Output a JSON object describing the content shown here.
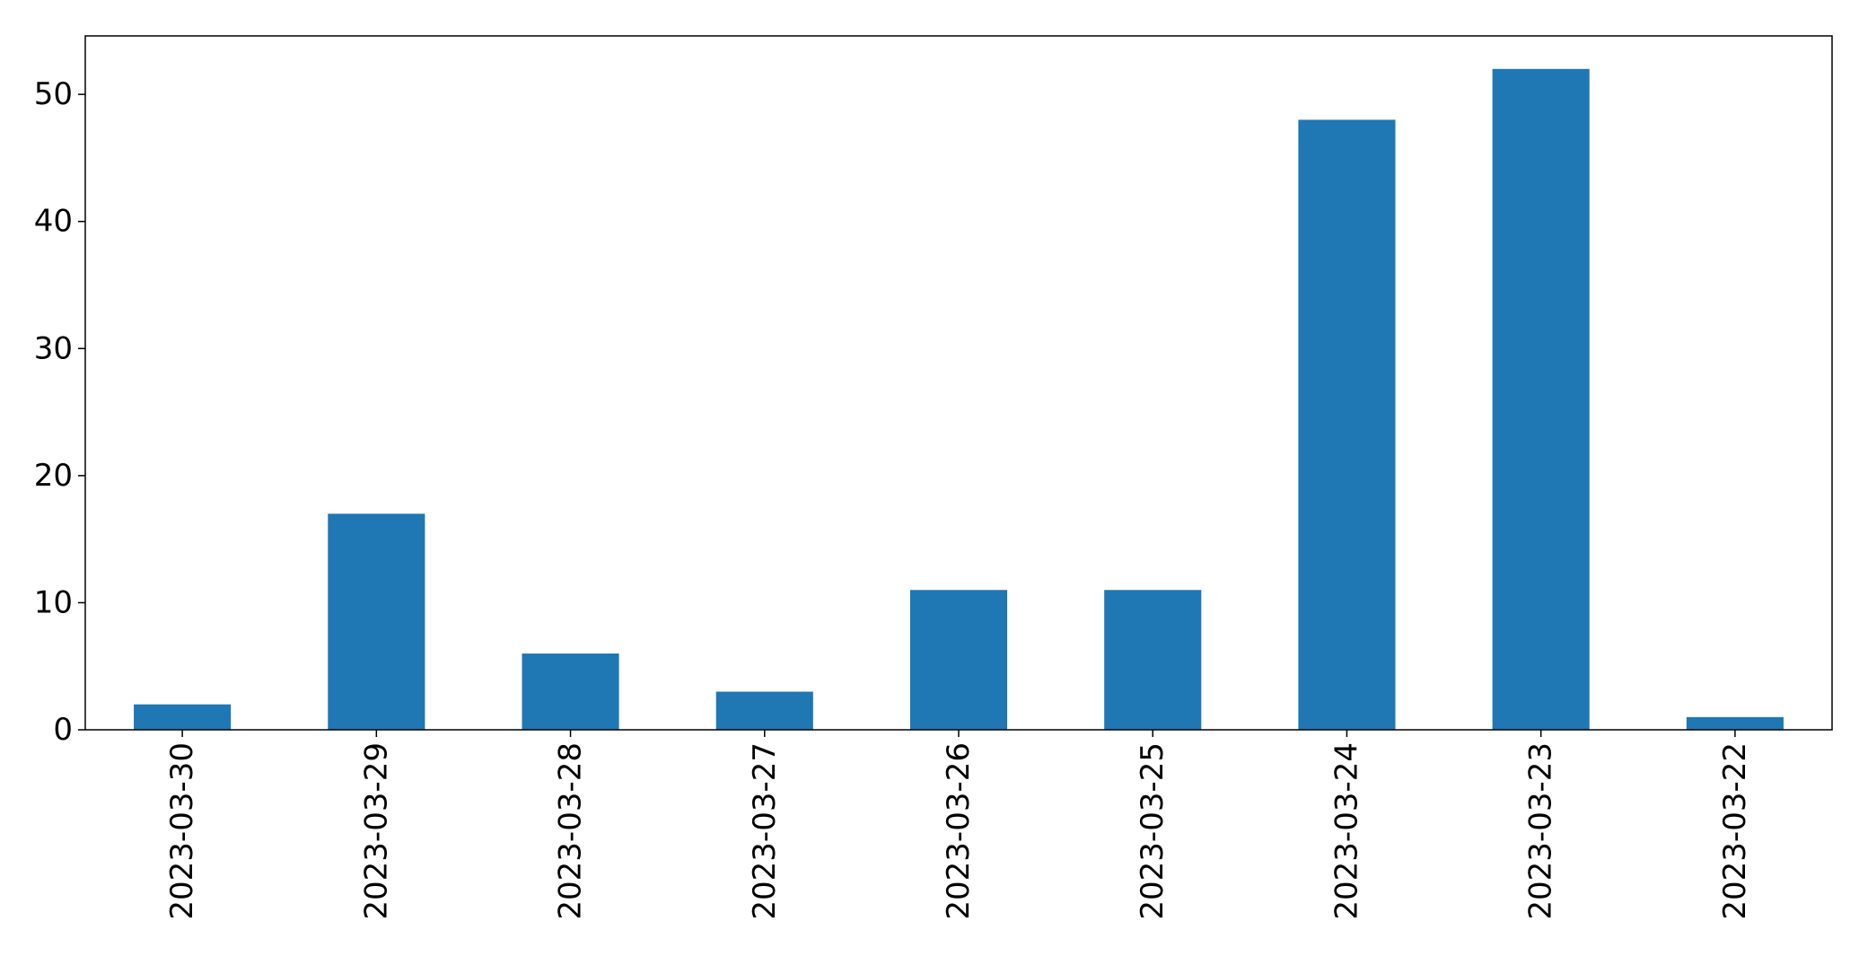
{
  "chart_data": {
    "type": "bar",
    "categories": [
      "2023-03-30",
      "2023-03-29",
      "2023-03-28",
      "2023-03-27",
      "2023-03-26",
      "2023-03-25",
      "2023-03-24",
      "2023-03-23",
      "2023-03-22"
    ],
    "values": [
      2,
      17,
      6,
      3,
      11,
      11,
      48,
      52,
      1
    ],
    "title": "",
    "xlabel": "",
    "ylabel": "",
    "ylim": [
      0,
      54.6
    ],
    "yticks": [
      0,
      10,
      20,
      30,
      40,
      50
    ],
    "grid": false,
    "legend": "none",
    "bar_color": "#1f77b4"
  }
}
